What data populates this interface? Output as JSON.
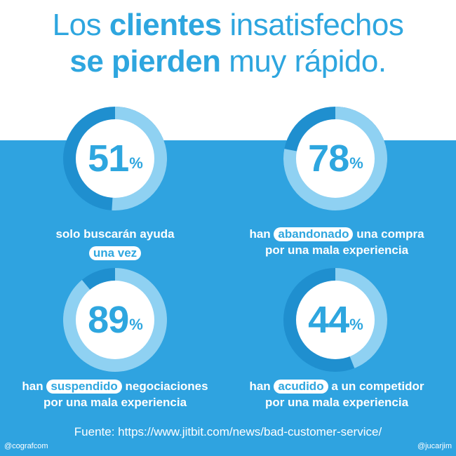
{
  "title": {
    "l1_part1": "Los",
    "l1_bold": "clientes",
    "l1_part2": "insatisfechos",
    "l2_bold": "se pierden",
    "l2_part2": "muy rápido."
  },
  "stats": [
    {
      "value": 51,
      "number": "51",
      "symbol": "%",
      "line1_pre": "solo buscarán ayuda",
      "line1_hl": "",
      "line1_post": "",
      "line2_pre": "",
      "line2_hl": "una vez",
      "line2_post": ""
    },
    {
      "value": 78,
      "number": "78",
      "symbol": "%",
      "line1_pre": "han",
      "line1_hl": "abandonado",
      "line1_post": "una compra",
      "line2_pre": "por una mala experiencia",
      "line2_hl": "",
      "line2_post": ""
    },
    {
      "value": 89,
      "number": "89",
      "symbol": "%",
      "line1_pre": "han",
      "line1_hl": "suspendido",
      "line1_post": "negociaciones",
      "line2_pre": "por una mala experiencia",
      "line2_hl": "",
      "line2_post": ""
    },
    {
      "value": 44,
      "number": "44",
      "symbol": "%",
      "line1_pre": "han",
      "line1_hl": "acudido",
      "line1_post": "a un competidor",
      "line2_pre": "por una mala experiencia",
      "line2_hl": "",
      "line2_post": ""
    }
  ],
  "source": "Fuente: https://www.jitbit.com/news/bad-customer-service/",
  "handles": {
    "left": "@cografcom",
    "right": "@jucarjim"
  },
  "colors": {
    "panel": "#2fa3e0",
    "ring_track": "#1f8fcf",
    "ring_fill": "#8fd1f2",
    "text_blue": "#2ea6df"
  }
}
